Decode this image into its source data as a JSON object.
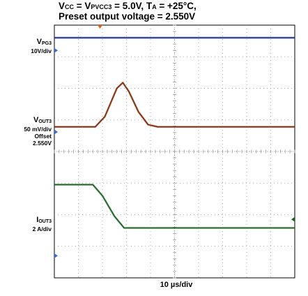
{
  "header": {
    "line1_parts": [
      "V",
      "CC",
      " = V",
      "PVCC3",
      " = 5.0V, T",
      "A",
      " = +25°C,"
    ],
    "line2": "Preset output voltage = 2.550V"
  },
  "channels": [
    {
      "name": "V",
      "sub": "PG3",
      "scale": "10V/div",
      "offset_label": "",
      "offset": ""
    },
    {
      "name": "V",
      "sub": "OUT3",
      "scale": "50 mV/div",
      "offset_label": "Offset",
      "offset": "2.550V"
    },
    {
      "name": "I",
      "sub": "OUT3",
      "scale": "2 A/div",
      "offset_label": "",
      "offset": ""
    }
  ],
  "timebase": "10 µs/div",
  "colors": {
    "vpg3": "#1a2f8a",
    "vout3": "#7a2a0a",
    "iout3": "#1b5e20",
    "marker": "#3b6bd6",
    "trigger": "#e05a1a",
    "grid": "#9a9a9a"
  },
  "chart_data": {
    "type": "line",
    "grid": {
      "x_divisions": 10,
      "y_divisions": 8
    },
    "x_unit": "µs",
    "x_per_div": 10,
    "series": [
      {
        "name": "VPG3",
        "units": "div",
        "points": [
          [
            0,
            7.6
          ],
          [
            10,
            7.6
          ]
        ]
      },
      {
        "name": "VOUT3",
        "units": "div",
        "points": [
          [
            0,
            4.78
          ],
          [
            1.7,
            4.78
          ],
          [
            2.1,
            5.1
          ],
          [
            2.6,
            6.0
          ],
          [
            2.85,
            6.18
          ],
          [
            3.1,
            5.9
          ],
          [
            3.5,
            5.25
          ],
          [
            3.9,
            4.85
          ],
          [
            4.3,
            4.78
          ],
          [
            10,
            4.78
          ]
        ]
      },
      {
        "name": "IOUT3",
        "units": "div",
        "points": [
          [
            0,
            2.95
          ],
          [
            1.6,
            2.95
          ],
          [
            2.0,
            2.6
          ],
          [
            2.5,
            1.95
          ],
          [
            2.9,
            1.58
          ],
          [
            10,
            1.58
          ]
        ]
      }
    ]
  }
}
